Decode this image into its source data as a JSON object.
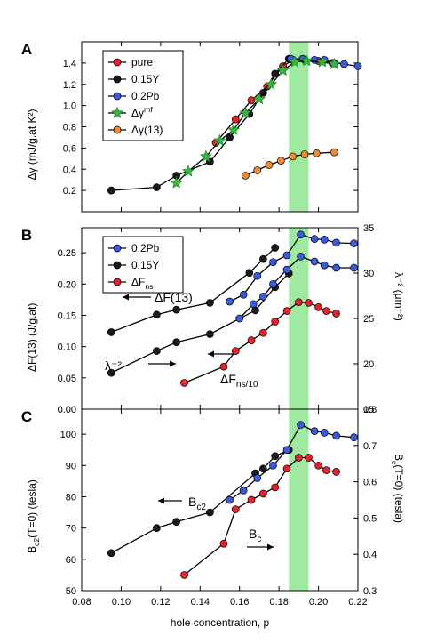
{
  "figure": {
    "shared_xlabel": "hole concentration, p",
    "band_color": "#8fe58f"
  },
  "chart_data": [
    {
      "type": "line",
      "panel_label": "A",
      "ylabel": "Δγ (mJ/g.at K²)",
      "xlim": [
        0.08,
        0.22
      ],
      "ylim": [
        0.0,
        1.6
      ],
      "xticks": [
        "0.08",
        "0.10",
        "0.12",
        "0.14",
        "0.16",
        "0.18",
        "0.20",
        "0.22"
      ],
      "yticks": [
        "0.2",
        "0.4",
        "0.6",
        "0.8",
        "1.0",
        "1.2",
        "1.4"
      ],
      "band": [
        0.185,
        0.195
      ],
      "legend": {
        "placement": "top-left",
        "entries": [
          "pure",
          "0.15Y",
          "0.2Pb",
          "Δγ^mf",
          "Δγ(13)"
        ]
      },
      "series": [
        {
          "name": "pure",
          "color": "#e8202a",
          "marker": "circle",
          "x": [
            0.148,
            0.158,
            0.166,
            0.174,
            0.182,
            0.187,
            0.193,
            0.2,
            0.207
          ],
          "y": [
            0.65,
            0.87,
            1.05,
            1.18,
            1.37,
            1.43,
            1.43,
            1.42,
            1.4
          ]
        },
        {
          "name": "0.15Y",
          "color": "#1a1a1a",
          "marker": "circle",
          "x": [
            0.095,
            0.118,
            0.128,
            0.145,
            0.155,
            0.165,
            0.172,
            0.178,
            0.185
          ],
          "y": [
            0.2,
            0.23,
            0.34,
            0.47,
            0.7,
            0.92,
            1.12,
            1.3,
            1.44
          ]
        },
        {
          "name": "0.2Pb",
          "color": "#3a5ae0",
          "marker": "circle",
          "x": [
            0.186,
            0.192,
            0.198,
            0.203,
            0.208,
            0.213,
            0.22
          ],
          "y": [
            1.44,
            1.44,
            1.43,
            1.43,
            1.4,
            1.39,
            1.37
          ]
        },
        {
          "name": "Δγ^mf",
          "color": "#2fb83a",
          "marker": "star",
          "x": [
            0.128,
            0.134,
            0.143,
            0.15,
            0.157,
            0.163,
            0.17,
            0.176,
            0.182,
            0.188,
            0.194,
            0.202,
            0.208
          ],
          "y": [
            0.27,
            0.38,
            0.52,
            0.67,
            0.77,
            0.93,
            1.06,
            1.2,
            1.33,
            1.41,
            1.42,
            1.41,
            1.39
          ]
        },
        {
          "name": "Δγ(13)",
          "color": "#f08c2e",
          "marker": "circle",
          "x": [
            0.163,
            0.169,
            0.175,
            0.181,
            0.187,
            0.193,
            0.199,
            0.208
          ],
          "y": [
            0.34,
            0.39,
            0.44,
            0.48,
            0.52,
            0.54,
            0.55,
            0.56
          ]
        }
      ]
    },
    {
      "type": "line",
      "panel_label": "B",
      "ylabel": "ΔF(13) (J/g.at)",
      "ylabel_right": "λ⁻² (μm⁻²)",
      "xlim": [
        0.08,
        0.22
      ],
      "ylim": [
        0.0,
        0.29
      ],
      "ylim_right": [
        15,
        35
      ],
      "xticks": [
        "0.08",
        "0.10",
        "0.12",
        "0.14",
        "0.16",
        "0.18",
        "0.20",
        "0.22"
      ],
      "yticks": [
        "0.00",
        "0.05",
        "0.10",
        "0.15",
        "0.20",
        "0.25"
      ],
      "yticks_right": [
        "15",
        "20",
        "25",
        "30",
        "35"
      ],
      "band": [
        0.185,
        0.195
      ],
      "legend": {
        "placement": "top-left",
        "entries": [
          "0.2Pb",
          "0.15Y",
          "ΔF_ns"
        ]
      },
      "annotations": {
        "arrow_left_1": "ΔF(13)",
        "arrow_left_2": "λ⁻²",
        "arrow_right_1": "ΔF_ns/10"
      },
      "series": [
        {
          "name": "0.15Y",
          "color": "#1a1a1a",
          "marker": "circle",
          "axis": "left",
          "x": [
            0.095,
            0.118,
            0.128,
            0.145,
            0.165,
            0.172,
            0.178
          ],
          "y": [
            0.123,
            0.151,
            0.159,
            0.17,
            0.218,
            0.24,
            0.258
          ]
        },
        {
          "name": "0.15Y",
          "color": "#1a1a1a",
          "marker": "circle",
          "axis": "left",
          "x": [
            0.095,
            0.118,
            0.128,
            0.145,
            0.168,
            0.178,
            0.185
          ],
          "y": [
            0.058,
            0.093,
            0.107,
            0.12,
            0.158,
            0.195,
            0.217
          ]
        },
        {
          "name": "0.2Pb",
          "color": "#3a5ae0",
          "marker": "circle",
          "axis": "left",
          "x": [
            0.155,
            0.162,
            0.169,
            0.177,
            0.184,
            0.191,
            0.198,
            0.203,
            0.209,
            0.218
          ],
          "y": [
            0.172,
            0.183,
            0.213,
            0.235,
            0.246,
            0.279,
            0.272,
            0.271,
            0.266,
            0.265
          ]
        },
        {
          "name": "0.2Pb",
          "color": "#3a5ae0",
          "marker": "circle",
          "axis": "left",
          "x": [
            0.16,
            0.167,
            0.172,
            0.177,
            0.184,
            0.191,
            0.198,
            0.203,
            0.209,
            0.218
          ],
          "y": [
            0.145,
            0.168,
            0.18,
            0.2,
            0.223,
            0.244,
            0.236,
            0.23,
            0.226,
            0.226
          ]
        },
        {
          "name": "ΔF_ns",
          "color": "#e8202a",
          "marker": "circle",
          "axis": "left",
          "x": [
            0.132,
            0.152,
            0.158,
            0.166,
            0.172,
            0.178,
            0.184,
            0.19,
            0.195,
            0.2,
            0.204,
            0.209
          ],
          "y": [
            0.042,
            0.068,
            0.093,
            0.11,
            0.122,
            0.14,
            0.157,
            0.171,
            0.17,
            0.163,
            0.157,
            0.153
          ]
        }
      ]
    },
    {
      "type": "line",
      "panel_label": "C",
      "ylabel": "B_c2(T=0) (tesla)",
      "ylabel_right": "B_c(T=0) (tesla)",
      "xlabel": "hole concentration, p",
      "xlim": [
        0.08,
        0.22
      ],
      "ylim": [
        50,
        108
      ],
      "ylim_right": [
        0.3,
        0.8
      ],
      "xticks": [
        "0.08",
        "0.10",
        "0.12",
        "0.14",
        "0.16",
        "0.18",
        "0.20",
        "0.22"
      ],
      "yticks": [
        "50",
        "60",
        "70",
        "80",
        "90",
        "100"
      ],
      "yticks_right": [
        "0.3",
        "0.4",
        "0.5",
        "0.6",
        "0.7",
        "0.8"
      ],
      "band": [
        0.185,
        0.195
      ],
      "annotations": {
        "arrow_left_1": "B_c2",
        "arrow_right_1": "B_c"
      },
      "series": [
        {
          "name": "0.15Y",
          "color": "#1a1a1a",
          "marker": "circle",
          "axis": "left",
          "x": [
            0.095,
            0.118,
            0.128,
            0.145,
            0.168,
            0.172,
            0.178,
            0.185
          ],
          "y": [
            62,
            70,
            72,
            75,
            87.5,
            89,
            93,
            95
          ]
        },
        {
          "name": "0.2Pb",
          "color": "#3a5ae0",
          "marker": "circle",
          "axis": "left",
          "x": [
            0.155,
            0.162,
            0.169,
            0.177,
            0.184,
            0.191,
            0.198,
            0.203,
            0.209,
            0.218
          ],
          "y": [
            79,
            82,
            86,
            90,
            95,
            103,
            101,
            100.5,
            99.5,
            99
          ]
        },
        {
          "name": "pure",
          "color": "#e8202a",
          "marker": "circle",
          "axis": "left",
          "x": [
            0.132,
            0.152,
            0.158,
            0.166,
            0.172,
            0.178,
            0.184,
            0.19,
            0.195,
            0.2,
            0.204,
            0.209
          ],
          "y": [
            55,
            65,
            76,
            79,
            81,
            83,
            89,
            92.5,
            92.5,
            90,
            88.5,
            88
          ]
        }
      ]
    }
  ]
}
